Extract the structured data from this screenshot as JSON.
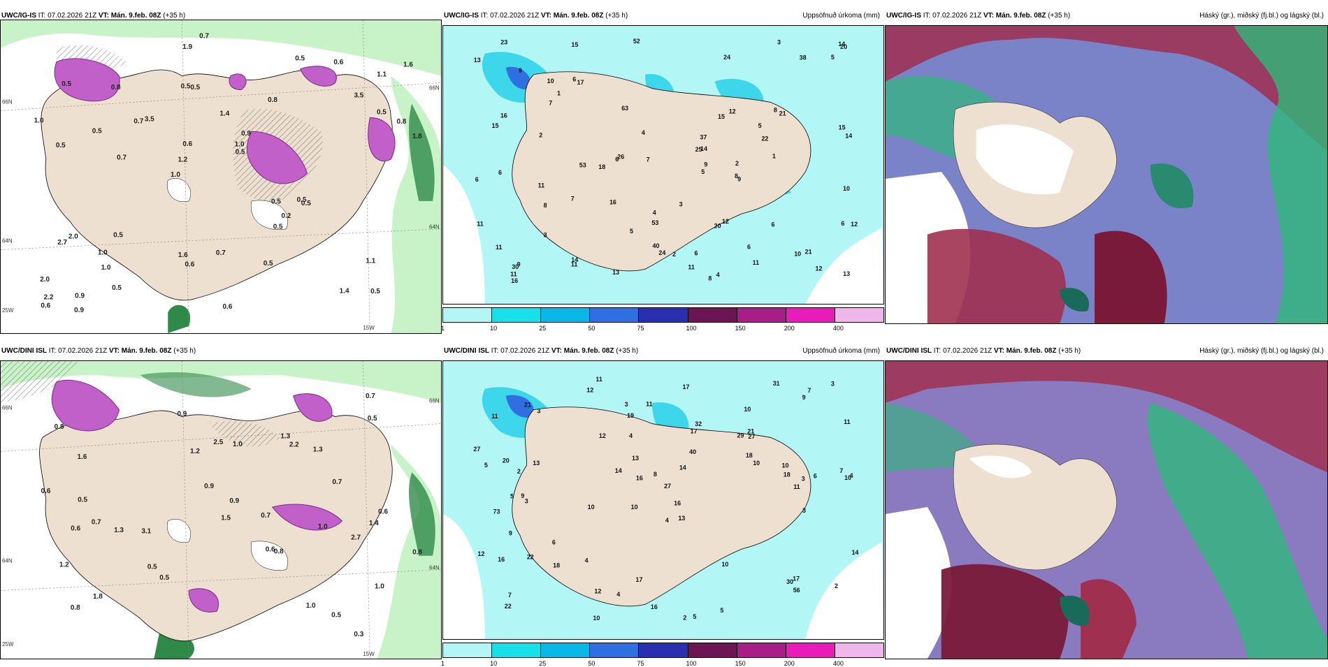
{
  "panels": [
    {
      "model": "UWC/IG-IS",
      "it_label": "IT:",
      "it": "07.02.2026 21Z",
      "vt_label": "VT:",
      "vt": "Mán. 9.feb. 08Z",
      "lead": "(+35 h)",
      "right_title": "",
      "labels": [
        "0.5",
        "0.5",
        "1.1",
        "1.0",
        "0.8",
        "0.9",
        "0.5",
        "1.4",
        "2.0",
        "3.5",
        "2.0",
        "1.0",
        "0.5",
        "0.9",
        "0.5",
        "0.5",
        "1.9",
        "1.8",
        "0.5",
        "0.5",
        "1.2",
        "1.6",
        "0.6",
        "0.8",
        "0.5",
        "0.5",
        "1.4",
        "1.1",
        "0.5",
        "0.6",
        "0.7",
        "0.5",
        "0.5",
        "0.5",
        "0.8",
        "1.0",
        "2.2",
        "0.6",
        "0.5",
        "2.7",
        "3.5",
        "1.6",
        "0.2",
        "0.5",
        "1.0",
        "0.9",
        "0.6",
        "0.7",
        "0.6",
        "0.7",
        "0.7",
        "1.0"
      ],
      "axis": [
        "66N",
        "64N",
        "25W",
        "15W",
        "66N",
        "64N"
      ]
    },
    {
      "model": "UWC/IG-IS",
      "it_label": "IT:",
      "it": "07.02.2026 21Z",
      "vt_label": "VT:",
      "vt": "Mán. 9.feb. 08Z",
      "lead": "(+35 h)",
      "right_title": "Uppsöfnuð úrkoma (mm)",
      "labels": [
        "13",
        "8",
        "14",
        "6",
        "15",
        "9",
        "53",
        "12",
        "52",
        "63",
        "38",
        "24",
        "26",
        "53",
        "24",
        "25",
        "16",
        "11",
        "18",
        "13",
        "20",
        "20",
        "37",
        "30",
        "21",
        "11",
        "11",
        "8",
        "23",
        "9",
        "7",
        "4",
        "4",
        "5",
        "3",
        "2",
        "6",
        "11",
        "12",
        "21",
        "14",
        "22",
        "12",
        "9",
        "17",
        "12",
        "10",
        "11",
        "10",
        "40",
        "14",
        "15",
        "13",
        "6",
        "7",
        "8",
        "6",
        "4",
        "6",
        "6",
        "10",
        "11",
        "7",
        "1",
        "2",
        "11",
        "9",
        "14",
        "16",
        "15",
        "5",
        "3",
        "1",
        "2",
        "5",
        "8",
        "5",
        "15",
        "16",
        "6",
        "3",
        "6"
      ],
      "colorbar": {
        "ticks": [
          "1",
          "10",
          "25",
          "50",
          "75",
          "100",
          "150",
          "200",
          "400"
        ],
        "colors": [
          "#b3f6f6",
          "#17e0e8",
          "#09b8e6",
          "#2f6fe0",
          "#2a2fb0",
          "#6b1652",
          "#a81d86",
          "#e81cb8",
          "#f0b6ec"
        ]
      }
    },
    {
      "model": "UWC/IG-IS",
      "it_label": "IT:",
      "it": "07.02.2026 21Z",
      "vt_label": "VT:",
      "vt": "Mán. 9.feb. 08Z",
      "lead": "(+35 h)",
      "right_title": "Háský (gr.), miðský (fj.bl.) og lágský (bl.)"
    },
    {
      "model": "UWC/DINI ISL",
      "it_label": "IT:",
      "it": "07.02.2026 21Z",
      "vt_label": "VT:",
      "vt": "Mán. 9.feb. 08Z",
      "lead": "(+35 h)",
      "right_title": "",
      "labels": [
        "0.3",
        "0.7",
        "0.6",
        "0.8",
        "1.0",
        "1.6",
        "1.8",
        "3.1",
        "1.3",
        "2.5",
        "2.2",
        "0.5",
        "0.5",
        "0.9",
        "0.7",
        "1.2",
        "1.0",
        "0.9",
        "0.6",
        "0.8",
        "0.7",
        "1.0",
        "0.7",
        "0.8",
        "0.6",
        "0.5",
        "1.3",
        "1.5",
        "0.9",
        "0.5",
        "0.8",
        "0.6",
        "0.5",
        "1.3",
        "1.2",
        "2.7",
        "1.4",
        "1.0"
      ],
      "axis": [
        "66N",
        "64N",
        "25W",
        "15W",
        "64N",
        "66N"
      ]
    },
    {
      "model": "UWC/DINI ISL",
      "it_label": "IT:",
      "it": "07.02.2026 21Z",
      "vt_label": "VT:",
      "vt": "Mán. 9.feb. 08Z",
      "lead": "(+35 h)",
      "right_title": "Uppsöfnuð úrkoma (mm)",
      "labels": [
        "11",
        "10",
        "10",
        "10",
        "13",
        "9",
        "11",
        "29",
        "73",
        "17",
        "27",
        "22",
        "12",
        "10",
        "2",
        "5",
        "17",
        "31",
        "10",
        "6",
        "2",
        "5",
        "4",
        "6",
        "12",
        "20",
        "16",
        "18",
        "17",
        "16",
        "30",
        "32",
        "22",
        "14",
        "10",
        "14",
        "10",
        "4",
        "3",
        "11",
        "7",
        "10",
        "5",
        "21",
        "16",
        "27",
        "56",
        "21",
        "27",
        "16",
        "19",
        "11",
        "14",
        "9",
        "17",
        "18",
        "13",
        "8",
        "7",
        "4",
        "2",
        "3",
        "3",
        "4",
        "4",
        "5",
        "3",
        "3",
        "12",
        "11",
        "9",
        "3",
        "7",
        "18",
        "40",
        "13",
        "12"
      ],
      "colorbar": {
        "ticks": [
          "1",
          "10",
          "25",
          "50",
          "75",
          "100",
          "150",
          "200",
          "400"
        ],
        "colors": [
          "#b3f6f6",
          "#17e0e8",
          "#09b8e6",
          "#2f6fe0",
          "#2a2fb0",
          "#6b1652",
          "#a81d86",
          "#e81cb8",
          "#f0b6ec"
        ]
      }
    },
    {
      "model": "UWC/DINI ISL",
      "it_label": "IT:",
      "it": "07.02.2026 21Z",
      "vt_label": "VT:",
      "vt": "Mán. 9.feb. 08Z",
      "lead": "(+35 h)",
      "right_title": "Háský (gr.), miðský (fj.bl.) og lágský (bl.)"
    }
  ],
  "colors": {
    "land": "#eee0d0",
    "precip_light": "#c8f2c8",
    "precip_mid": "#8fd39a",
    "precip_dark": "#2f8a4a",
    "snow": "#c060c8",
    "cyan_light": "#b3f6f6",
    "cyan": "#3dd6ea",
    "blue": "#2f6fe0",
    "high_cloud": "#2fb87a",
    "mid_cloud": "#7a1a3a",
    "low_cloud": "#4a52c8"
  }
}
